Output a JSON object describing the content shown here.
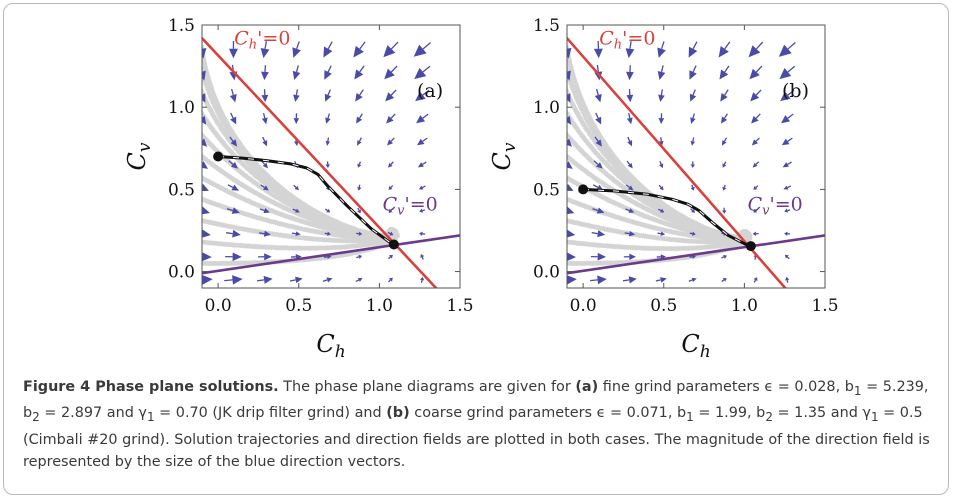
{
  "figure": {
    "caption": {
      "lead": "Figure 4  Phase plane solutions.",
      "t1": " The phase plane diagrams are given for ",
      "a_tag": "(a)",
      "t2": " fine grind parameters ϵ = 0.028, b",
      "t3": " = 5.239, b",
      "t4": " = 2.897 and γ",
      "t5": " = 0.70 (JK drip filter grind) and ",
      "b_tag": "(b)",
      "t6": " coarse grind parameters ϵ = 0.071, b",
      "t7": " = 1.99, b",
      "t8": " = 1.35 and γ",
      "t9": " = 0.5 (Cimbali #20 grind). Solution trajectories and direction fields are plotted in both cases. The magnitude of the direction field is represented by the size of the blue direction vectors.",
      "sub1": "1",
      "sub2": "2"
    }
  },
  "chart_data": [
    {
      "type": "line",
      "panel_label": "(a)",
      "xlabel": "C",
      "xlabel_sub": "h",
      "ylabel": "C",
      "ylabel_sub": "v",
      "xlim": [
        -0.1,
        1.5
      ],
      "ylim": [
        -0.1,
        1.5
      ],
      "xticks": [
        "0.0",
        "0.5",
        "1.0",
        "1.5"
      ],
      "yticks": [
        "0.0",
        "0.5",
        "1.0",
        "1.5"
      ],
      "xtick_values": [
        0,
        0.5,
        1.0,
        1.5
      ],
      "ytick_values": [
        0,
        0.5,
        1.0,
        1.5
      ],
      "grid": false,
      "annotations": [
        {
          "text_main": "C",
          "text_sub": "h",
          "text_tail": "'=0",
          "x": 0.1,
          "y": 1.38,
          "color": "#d9413c"
        },
        {
          "text_main": "C",
          "text_sub": "v",
          "text_tail": "'=0",
          "x": 1.02,
          "y": 0.37,
          "color": "#6b3a8c"
        }
      ],
      "series": [
        {
          "role": "h-nullcline",
          "color": "#d9413c",
          "x": [
            -0.1,
            1.38
          ],
          "y": [
            1.42,
            -0.13
          ]
        },
        {
          "role": "v-nullcline",
          "color": "#6b3a8c",
          "x": [
            -0.1,
            1.5
          ],
          "y": [
            -0.01,
            0.22
          ]
        },
        {
          "role": "trajectory",
          "color": "#111111",
          "x": [
            0.0,
            0.15,
            0.3,
            0.45,
            0.55,
            0.62,
            0.68,
            0.8,
            0.95,
            1.09
          ],
          "y": [
            0.7,
            0.69,
            0.675,
            0.655,
            0.63,
            0.59,
            0.52,
            0.4,
            0.26,
            0.16
          ]
        }
      ],
      "points": [
        {
          "x": 0.0,
          "y": 0.7
        },
        {
          "x": 1.09,
          "y": 0.165
        }
      ],
      "field": {
        "k": 1.28,
        "a": 0.39,
        "b": 0.17,
        "dx": 0.4,
        "dy": 0.92
      }
    },
    {
      "type": "line",
      "panel_label": "(b)",
      "xlabel": "C",
      "xlabel_sub": "h",
      "ylabel": "C",
      "ylabel_sub": "v",
      "xlim": [
        -0.1,
        1.5
      ],
      "ylim": [
        -0.1,
        1.5
      ],
      "xticks": [
        "0.0",
        "0.5",
        "1.0",
        "1.5"
      ],
      "yticks": [
        "0.0",
        "0.5",
        "1.0",
        "1.5"
      ],
      "xtick_values": [
        0,
        0.5,
        1.0,
        1.5
      ],
      "ytick_values": [
        0,
        0.5,
        1.0,
        1.5
      ],
      "grid": false,
      "annotations": [
        {
          "text_main": "C",
          "text_sub": "h",
          "text_tail": "'=0",
          "x": 0.1,
          "y": 1.38,
          "color": "#d9413c"
        },
        {
          "text_main": "C",
          "text_sub": "v",
          "text_tail": "'=0",
          "x": 1.02,
          "y": 0.37,
          "color": "#6b3a8c"
        }
      ],
      "series": [
        {
          "role": "h-nullcline",
          "color": "#d9413c",
          "x": [
            -0.1,
            1.28
          ],
          "y": [
            1.42,
            -0.13
          ]
        },
        {
          "role": "v-nullcline",
          "color": "#6b3a8c",
          "x": [
            -0.1,
            1.5
          ],
          "y": [
            -0.01,
            0.22
          ]
        },
        {
          "role": "trajectory",
          "color": "#111111",
          "x": [
            0.0,
            0.2,
            0.4,
            0.55,
            0.65,
            0.72,
            0.8,
            0.9,
            1.04
          ],
          "y": [
            0.5,
            0.49,
            0.47,
            0.44,
            0.41,
            0.37,
            0.3,
            0.22,
            0.15
          ]
        }
      ],
      "points": [
        {
          "x": 0.0,
          "y": 0.5
        },
        {
          "x": 1.04,
          "y": 0.155
        }
      ],
      "field": {
        "k": 1.17,
        "a": 0.38,
        "b": 0.15,
        "dx": 0.45,
        "dy": 0.9
      }
    }
  ],
  "colors": {
    "field_arrow": "#4a4aa8",
    "streamline": "#d4d4d4",
    "frame": "#555555"
  }
}
